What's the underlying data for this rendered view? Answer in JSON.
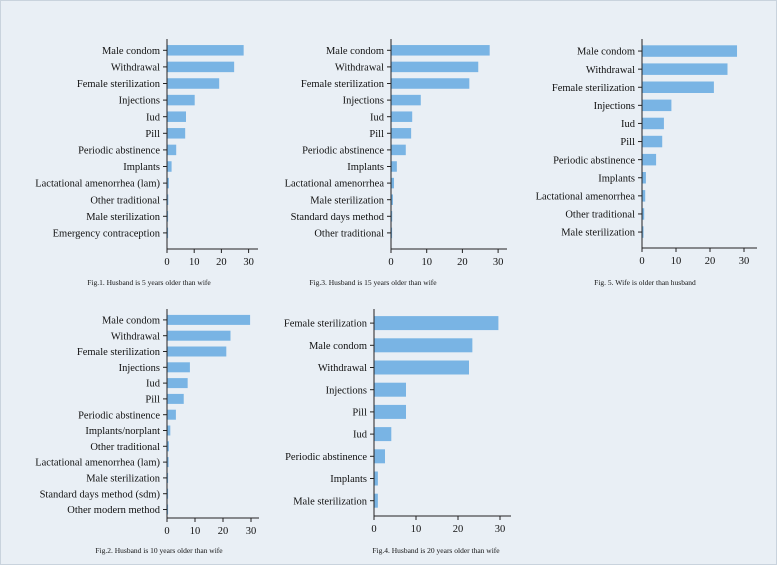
{
  "colors": {
    "bar": "#79b4e4",
    "axis": "#222222",
    "panel": "#e9eff5"
  },
  "chart_data": [
    {
      "type": "bar",
      "orientation": "horizontal",
      "caption": "Fig.1. Husband is 5 years older than wife",
      "categories": [
        "Male condom",
        "Withdrawal",
        "Female sterilization",
        "Injections",
        "Iud",
        "Pill",
        "Periodic abstinence",
        "Implants",
        "Lactational amenorrhea (lam)",
        "Other traditional",
        "Male sterilization",
        "Emergency contraception"
      ],
      "values": [
        28.0,
        24.5,
        19.0,
        10.0,
        6.8,
        6.5,
        3.2,
        1.5,
        0.5,
        0.3,
        0.2,
        0.1
      ],
      "xlim": [
        0,
        32
      ],
      "xticks": [
        "0",
        "10",
        "20",
        "30"
      ]
    },
    {
      "type": "bar",
      "orientation": "horizontal",
      "caption": "Fig.3. Husband is 15 years older than wife",
      "categories": [
        "Male condom",
        "Withdrawal",
        "Female sterilization",
        "Injections",
        "Iud",
        "Pill",
        "Periodic abstinence",
        "Implants",
        "Lactational amenorrhea",
        "Male sterilization",
        "Standard days method",
        "Other traditional"
      ],
      "values": [
        27.5,
        24.3,
        21.8,
        8.2,
        5.8,
        5.5,
        4.0,
        1.5,
        0.7,
        0.4,
        0.2,
        0.1
      ],
      "xlim": [
        0,
        32
      ],
      "xticks": [
        "0",
        "10",
        "20",
        "30"
      ]
    },
    {
      "type": "bar",
      "orientation": "horizontal",
      "caption": "Fig. 5. Wife is older than husband",
      "categories": [
        "Male condom",
        "Withdrawal",
        "Female sterilization",
        "Injections",
        "Iud",
        "Pill",
        "Periodic abstinence",
        "Implants",
        "Lactational amenorrhea",
        "Other traditional",
        "Male sterilization"
      ],
      "values": [
        27.8,
        25.0,
        21.0,
        8.5,
        6.3,
        5.8,
        4.0,
        1.0,
        0.8,
        0.5,
        0.3
      ],
      "xlim": [
        0,
        32
      ],
      "xticks": [
        "0",
        "10",
        "20",
        "30"
      ]
    },
    {
      "type": "bar",
      "orientation": "horizontal",
      "caption": "Fig.2. Husband is 10 years older than wife",
      "categories": [
        "Male condom",
        "Withdrawal",
        "Female sterilization",
        "Injections",
        "Iud",
        "Pill",
        "Periodic abstinence",
        "Implants/norplant",
        "Other traditional",
        "Lactational amenorrhea (lam)",
        "Male sterilization",
        "Standard days method (sdm)",
        "Other modern method"
      ],
      "values": [
        29.5,
        22.5,
        21.0,
        8.0,
        7.2,
        5.8,
        3.0,
        1.0,
        0.5,
        0.4,
        0.2,
        0.1,
        0.1
      ],
      "xlim": [
        0,
        32
      ],
      "xticks": [
        "0",
        "10",
        "20",
        "30"
      ]
    },
    {
      "type": "bar",
      "orientation": "horizontal",
      "caption": "Fig.4. Husband is 20 years older than wife",
      "categories": [
        "Female sterilization",
        "Male condom",
        "Withdrawal",
        "Injections",
        "Pill",
        "Iud",
        "Periodic abstinence",
        "Implants",
        "Male sterilization"
      ],
      "values": [
        29.5,
        23.3,
        22.5,
        7.5,
        7.5,
        4.0,
        2.5,
        0.8,
        0.8
      ],
      "xlim": [
        0,
        32
      ],
      "xticks": [
        "0",
        "10",
        "20",
        "30"
      ]
    }
  ]
}
